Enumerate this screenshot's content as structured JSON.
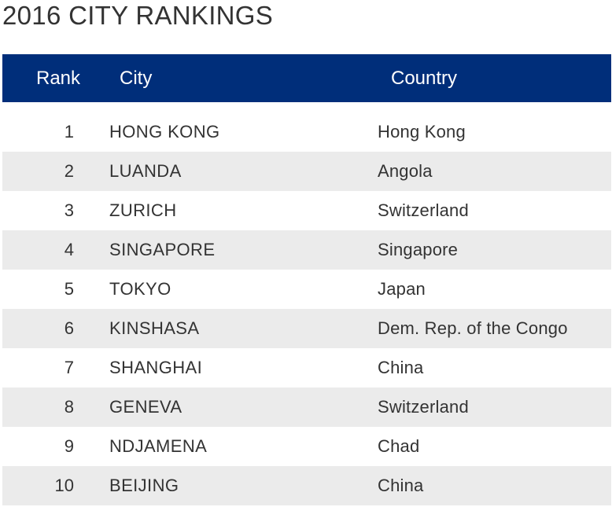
{
  "title": "2016 CITY RANKINGS",
  "colors": {
    "header_bg": "#002e7a",
    "header_text": "#ffffff",
    "row_alt_bg": "#ebebeb",
    "text": "#333333"
  },
  "table": {
    "headers": {
      "rank": "Rank",
      "city": "City",
      "country": "Country"
    },
    "rows": [
      {
        "rank": "1",
        "city": "HONG KONG",
        "country": "Hong Kong"
      },
      {
        "rank": "2",
        "city": "LUANDA",
        "country": "Angola"
      },
      {
        "rank": "3",
        "city": "ZURICH",
        "country": "Switzerland"
      },
      {
        "rank": "4",
        "city": "SINGAPORE",
        "country": "Singapore"
      },
      {
        "rank": "5",
        "city": "TOKYO",
        "country": "Japan"
      },
      {
        "rank": "6",
        "city": "KINSHASA",
        "country": "Dem. Rep. of the Congo"
      },
      {
        "rank": "7",
        "city": "SHANGHAI",
        "country": "China"
      },
      {
        "rank": "8",
        "city": "GENEVA",
        "country": "Switzerland"
      },
      {
        "rank": "9",
        "city": "NDJAMENA",
        "country": "Chad"
      },
      {
        "rank": "10",
        "city": "BEIJING",
        "country": "China"
      }
    ]
  }
}
